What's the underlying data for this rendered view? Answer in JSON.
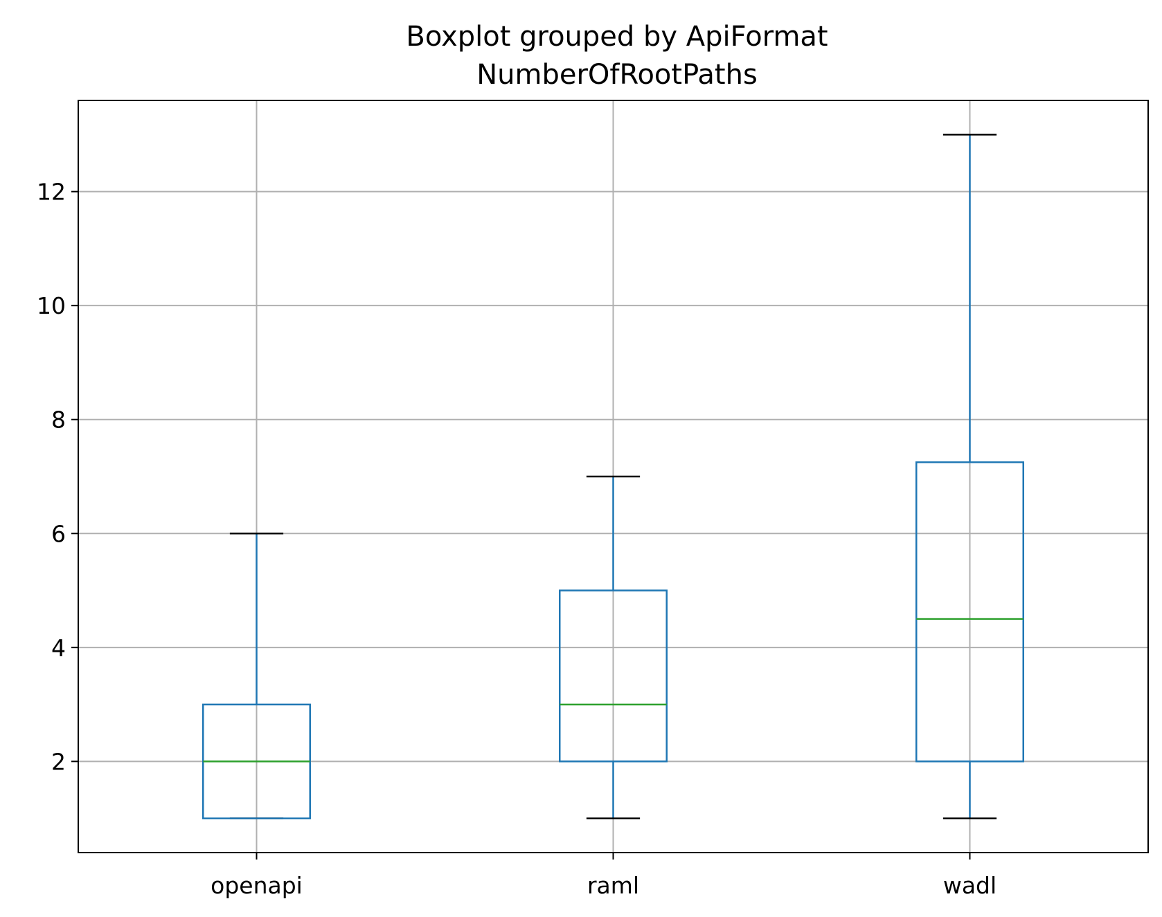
{
  "chart_data": {
    "type": "box",
    "title": "Boxplot grouped by ApiFormat",
    "subtitle": "NumberOfRootPaths",
    "xlabel": "",
    "ylabel": "",
    "ylim": [
      0.4,
      13.6
    ],
    "yticks": [
      "2",
      "4",
      "6",
      "8",
      "10",
      "12"
    ],
    "categories": [
      "openapi",
      "raml",
      "wadl"
    ],
    "boxes": [
      {
        "category": "openapi",
        "whisker_low": 1,
        "q1": 1,
        "median": 2,
        "q3": 3,
        "whisker_high": 6
      },
      {
        "category": "raml",
        "whisker_low": 1,
        "q1": 2,
        "median": 3,
        "q3": 5,
        "whisker_high": 7
      },
      {
        "category": "wadl",
        "whisker_low": 1,
        "q1": 2,
        "median": 4.5,
        "q3": 7.25,
        "whisker_high": 13
      }
    ],
    "grid": true,
    "colors": {
      "box": "#1f77b4",
      "median": "#2ca02c",
      "cap": "#000000",
      "grid": "#b0b0b0"
    }
  }
}
